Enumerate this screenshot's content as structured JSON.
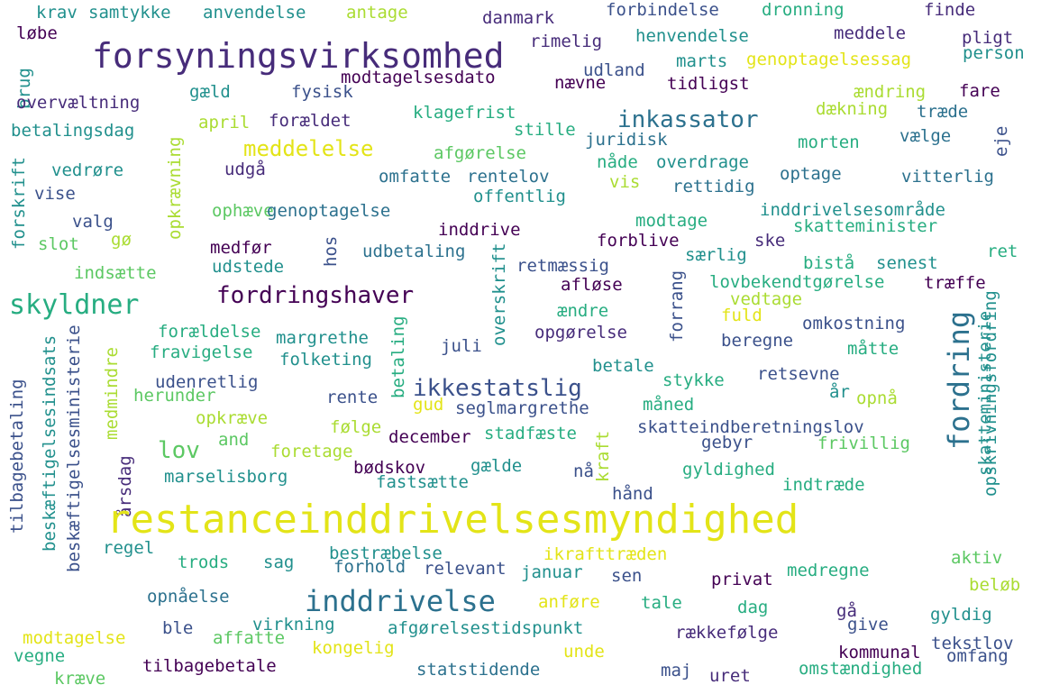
{
  "words": [
    "krav",
    "samtykke",
    "anvendelse",
    "antage",
    "danmark",
    "forbindelse",
    "dronning",
    "finde",
    "løbe",
    "rimelig",
    "henvendelse",
    "meddele",
    "pligt",
    "forsyningsvirksomhed",
    "udland",
    "marts",
    "genoptagelsessag",
    "person",
    "brug",
    "modtagelsesdato",
    "nævne",
    "tidligst",
    "gæld",
    "fysisk",
    "overvæltning",
    "ændring",
    "fare",
    "april",
    "forældet",
    "klagefrist",
    "inkassator",
    "dækning",
    "træde",
    "betalingsdag",
    "stille",
    "meddelelse",
    "juridisk",
    "morten",
    "vælge",
    "eje",
    "afgørelse",
    "udgå",
    "opkrævning",
    "vedrøre",
    "omfatte",
    "rentelov",
    "nåde",
    "overdrage",
    "optage",
    "vitterlig",
    "forskrift",
    "vise",
    "offentlig",
    "vis",
    "rettidig",
    "ophæve",
    "genoptagelse",
    "inddrivelsesområde",
    "valg",
    "inddrive",
    "modtage",
    "skatteminister",
    "slot",
    "gø",
    "medfør",
    "forblive",
    "ske",
    "særlig",
    "ret",
    "hos",
    "udbetaling",
    "udstede",
    "retmæssig",
    "indsætte",
    "bistå",
    "senest",
    "skyldner",
    "fordringshaver",
    "afløse",
    "lovbekendtgørelse",
    "træffe",
    "overskrift",
    "vedtage",
    "forrang",
    "fuld",
    "ændre",
    "fordring",
    "forældelse",
    "omkostning",
    "betaling",
    "opskrivningsfordring",
    "skatteministerie",
    "margrethe",
    "opgørelse",
    "beregne",
    "juli",
    "fravigelse",
    "måtte",
    "folketing",
    "betale",
    "tilbagebetaling",
    "beskæftigelsesindsats",
    "beskæftigelsesministerie",
    "medmindre",
    "udenretlig",
    "stykke",
    "retsevne",
    "ikkestatslig",
    "år",
    "herunder",
    "rente",
    "opnå",
    "gud",
    "måned",
    "seglmargrethe",
    "følge",
    "opkræve",
    "skatteindberetningslov",
    "lov",
    "december",
    "stadfæste",
    "frivillig",
    "kraft",
    "gebyr",
    "and",
    "foretage",
    "årsdag",
    "bødskov",
    "gælde",
    "marselisborg",
    "nå",
    "fastsætte",
    "gyldighed",
    "indtræde",
    "hånd",
    "restanceinddrivelsesmyndighed",
    "regel",
    "bestræbelse",
    "ikrafttræden",
    "aktiv",
    "trods",
    "sag",
    "forhold",
    "relevant",
    "januar",
    "sen",
    "privat",
    "medregne",
    "inddrivelse",
    "opnåelse",
    "beløb",
    "anføre",
    "tale",
    "dag",
    "gå",
    "ble",
    "virkning",
    "afgørelsestidspunkt",
    "give",
    "gyldig",
    "modtagelse",
    "affatte",
    "kongelig",
    "unde",
    "rækkefølge",
    "tekstlov",
    "vegne",
    "kommunal",
    "omfang",
    "tilbagebetale",
    "kræve",
    "statstidende",
    "maj",
    "uret",
    "omstændighed"
  ]
}
